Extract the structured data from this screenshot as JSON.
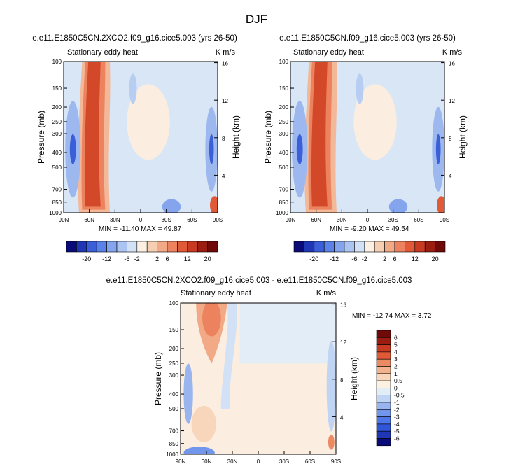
{
  "figure": {
    "title": "DJF"
  },
  "chart_data": [
    {
      "type": "heatmap",
      "title": "e.e11.E1850C5CN.2XCO2.f09_g16.cice5.003 (yrs 26-50)",
      "left_string": "Stationary eddy heat",
      "units": "K m/s",
      "xlabel": "",
      "ylabel": "Pressure (mb)",
      "right_label": "Height (km)",
      "x_ticks": [
        "90N",
        "60N",
        "30N",
        "0",
        "30S",
        "60S",
        "90S"
      ],
      "y_ticks": [
        100,
        150,
        200,
        250,
        300,
        400,
        500,
        700,
        850,
        1000
      ],
      "right_ticks": [
        16,
        12,
        8,
        4
      ],
      "ylim": [
        1000,
        100
      ],
      "y_scale": "log",
      "min_max": "MIN = -11.40  MAX = 49.87"
    },
    {
      "type": "heatmap",
      "title": "e.e11.E1850C5CN.f09_g16.cice5.003 (yrs 26-50)",
      "left_string": "Stationary eddy heat",
      "units": "K m/s",
      "xlabel": "",
      "ylabel": "Pressure (mb)",
      "right_label": "Height (km)",
      "x_ticks": [
        "90N",
        "60N",
        "30N",
        "0",
        "30S",
        "60S",
        "90S"
      ],
      "y_ticks": [
        100,
        150,
        200,
        250,
        300,
        400,
        500,
        700,
        850,
        1000
      ],
      "right_ticks": [
        16,
        12,
        8,
        4
      ],
      "ylim": [
        1000,
        100
      ],
      "y_scale": "log",
      "min_max": "MIN = -9.20  MAX = 49.54"
    },
    {
      "type": "heatmap",
      "title": "e.e11.E1850C5CN.2XCO2.f09_g16.cice5.003 - e.e11.E1850C5CN.f09_g16.cice5.003",
      "left_string": "Stationary eddy heat",
      "units": "K m/s",
      "xlabel": "",
      "ylabel": "Pressure (mb)",
      "right_label": "Height (km)",
      "x_ticks": [
        "90N",
        "60N",
        "30N",
        "0",
        "30S",
        "60S",
        "90S"
      ],
      "y_ticks": [
        100,
        150,
        200,
        250,
        300,
        400,
        500,
        700,
        850,
        1000
      ],
      "right_ticks": [
        16,
        12,
        8,
        4
      ],
      "ylim": [
        1000,
        100
      ],
      "y_scale": "log",
      "min_max": "MIN = -12.74  MAX =   3.72"
    }
  ],
  "colorbar_top": {
    "colors": [
      "#0a0a78",
      "#1f37b4",
      "#3b5fd8",
      "#5b82e8",
      "#84a5ee",
      "#acc4f2",
      "#d2e1f6",
      "#fbf0e2",
      "#f6cfb2",
      "#f2aa86",
      "#ec825e",
      "#e05a38",
      "#c83a22",
      "#9b1d12",
      "#700a08"
    ],
    "labels": [
      "-20",
      "-12",
      "-6",
      "-2",
      "2",
      "6",
      "12",
      "20"
    ]
  },
  "colorbar_diff": {
    "colors": [
      "#0a0a78",
      "#1f37b4",
      "#2f55d8",
      "#4d76e8",
      "#7296ec",
      "#98b5f0",
      "#c0d4f4",
      "#e3edf8",
      "#fbf0e2",
      "#f7d6bb",
      "#f2b28e",
      "#ec8a63",
      "#e05a38",
      "#c83a22",
      "#9b1d12",
      "#700a08"
    ],
    "labels": [
      "-6",
      "-5",
      "-4",
      "-3",
      "-2",
      "-1",
      "-0.5",
      "0",
      "0.5",
      "1",
      "2",
      "3",
      "4",
      "5",
      "6"
    ]
  }
}
